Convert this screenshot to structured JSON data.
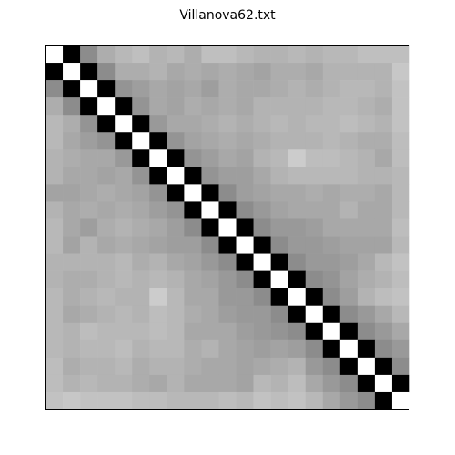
{
  "chart_data": {
    "type": "heatmap",
    "title": "Villanova62.txt",
    "colormap": "gray",
    "values": [
      [
        1,
        0,
        0.55,
        0.68,
        0.72,
        0.75,
        0.7,
        0.72,
        0.68,
        0.75,
        0.75,
        0.72,
        0.7,
        0.7,
        0.72,
        0.7,
        0.72,
        0.72,
        0.75,
        0.75,
        0.75
      ],
      [
        0,
        1,
        0,
        0.55,
        0.68,
        0.68,
        0.7,
        0.66,
        0.68,
        0.66,
        0.68,
        0.66,
        0.64,
        0.68,
        0.68,
        0.66,
        0.7,
        0.7,
        0.7,
        0.7,
        0.78
      ],
      [
        0.55,
        0,
        1,
        0,
        0.58,
        0.62,
        0.66,
        0.64,
        0.66,
        0.62,
        0.68,
        0.66,
        0.66,
        0.68,
        0.7,
        0.68,
        0.7,
        0.72,
        0.72,
        0.7,
        0.76
      ],
      [
        0.68,
        0.55,
        0,
        1,
        0,
        0.58,
        0.66,
        0.64,
        0.68,
        0.66,
        0.68,
        0.66,
        0.7,
        0.7,
        0.7,
        0.7,
        0.72,
        0.72,
        0.7,
        0.68,
        0.76
      ],
      [
        0.72,
        0.68,
        0.58,
        0,
        1,
        0,
        0.6,
        0.66,
        0.66,
        0.68,
        0.7,
        0.68,
        0.7,
        0.72,
        0.7,
        0.72,
        0.72,
        0.74,
        0.72,
        0.7,
        0.76
      ],
      [
        0.72,
        0.66,
        0.62,
        0.58,
        0,
        1,
        0,
        0.58,
        0.64,
        0.66,
        0.68,
        0.66,
        0.68,
        0.7,
        0.7,
        0.7,
        0.72,
        0.7,
        0.68,
        0.68,
        0.74
      ],
      [
        0.7,
        0.68,
        0.66,
        0.66,
        0.6,
        0,
        1,
        0,
        0.58,
        0.62,
        0.66,
        0.64,
        0.7,
        0.72,
        0.8,
        0.74,
        0.74,
        0.72,
        0.7,
        0.66,
        0.74
      ],
      [
        0.7,
        0.66,
        0.66,
        0.64,
        0.66,
        0.58,
        0,
        1,
        0,
        0.58,
        0.62,
        0.62,
        0.66,
        0.7,
        0.72,
        0.72,
        0.72,
        0.72,
        0.7,
        0.7,
        0.72
      ],
      [
        0.64,
        0.64,
        0.66,
        0.68,
        0.66,
        0.64,
        0.58,
        0,
        1,
        0,
        0.55,
        0.62,
        0.64,
        0.66,
        0.66,
        0.68,
        0.66,
        0.68,
        0.68,
        0.66,
        0.72
      ],
      [
        0.7,
        0.66,
        0.68,
        0.66,
        0.68,
        0.66,
        0.62,
        0.58,
        0,
        1,
        0,
        0.55,
        0.6,
        0.64,
        0.66,
        0.66,
        0.66,
        0.7,
        0.66,
        0.66,
        0.72
      ],
      [
        0.72,
        0.66,
        0.62,
        0.68,
        0.7,
        0.68,
        0.66,
        0.62,
        0.55,
        0,
        1,
        0,
        0.55,
        0.6,
        0.6,
        0.62,
        0.66,
        0.66,
        0.66,
        0.66,
        0.74
      ],
      [
        0.72,
        0.64,
        0.7,
        0.66,
        0.68,
        0.66,
        0.64,
        0.62,
        0.62,
        0.55,
        0,
        1,
        0,
        0.55,
        0.6,
        0.6,
        0.62,
        0.64,
        0.64,
        0.64,
        0.72
      ],
      [
        0.7,
        0.7,
        0.7,
        0.7,
        0.72,
        0.68,
        0.7,
        0.66,
        0.64,
        0.6,
        0.55,
        0,
        1,
        0,
        0.55,
        0.6,
        0.6,
        0.62,
        0.66,
        0.72,
        0.76
      ],
      [
        0.7,
        0.68,
        0.68,
        0.7,
        0.72,
        0.7,
        0.72,
        0.7,
        0.66,
        0.64,
        0.6,
        0.55,
        0,
        1,
        0,
        0.55,
        0.58,
        0.64,
        0.68,
        0.7,
        0.74
      ],
      [
        0.72,
        0.68,
        0.7,
        0.72,
        0.7,
        0.7,
        0.8,
        0.72,
        0.66,
        0.66,
        0.6,
        0.6,
        0.55,
        0,
        1,
        0,
        0.55,
        0.62,
        0.7,
        0.74,
        0.76
      ],
      [
        0.72,
        0.66,
        0.68,
        0.7,
        0.72,
        0.7,
        0.74,
        0.72,
        0.68,
        0.66,
        0.62,
        0.6,
        0.6,
        0.55,
        0,
        1,
        0,
        0.55,
        0.6,
        0.66,
        0.72
      ],
      [
        0.72,
        0.7,
        0.74,
        0.72,
        0.72,
        0.72,
        0.74,
        0.72,
        0.66,
        0.66,
        0.66,
        0.62,
        0.6,
        0.58,
        0.55,
        0,
        1,
        0,
        0.55,
        0.6,
        0.66
      ],
      [
        0.72,
        0.7,
        0.72,
        0.72,
        0.74,
        0.7,
        0.72,
        0.72,
        0.68,
        0.7,
        0.66,
        0.64,
        0.62,
        0.64,
        0.62,
        0.55,
        0,
        1,
        0,
        0.55,
        0.6
      ],
      [
        0.74,
        0.68,
        0.7,
        0.7,
        0.72,
        0.68,
        0.7,
        0.7,
        0.68,
        0.66,
        0.66,
        0.64,
        0.66,
        0.68,
        0.7,
        0.6,
        0.55,
        0,
        1,
        0,
        0.55
      ],
      [
        0.74,
        0.7,
        0.72,
        0.7,
        0.7,
        0.68,
        0.66,
        0.7,
        0.66,
        0.66,
        0.66,
        0.64,
        0.72,
        0.7,
        0.74,
        0.66,
        0.6,
        0.55,
        0,
        1,
        0
      ],
      [
        0.76,
        0.78,
        0.76,
        0.76,
        0.76,
        0.74,
        0.74,
        0.72,
        0.72,
        0.72,
        0.74,
        0.72,
        0.76,
        0.74,
        0.76,
        0.72,
        0.66,
        0.6,
        0.55,
        0,
        1
      ]
    ]
  }
}
